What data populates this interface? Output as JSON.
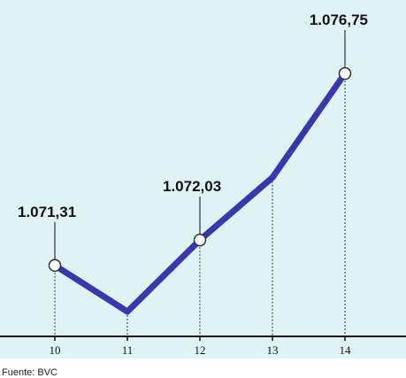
{
  "chart_data": {
    "type": "line",
    "x": [
      "10",
      "11",
      "12",
      "13",
      "14"
    ],
    "series": [
      {
        "values": [
          1071.31,
          1070.0,
          1072.03,
          1073.8,
          1076.75
        ]
      }
    ],
    "callouts": [
      {
        "index": 0,
        "label": "1.071,31"
      },
      {
        "index": 2,
        "label": "1.072,03"
      },
      {
        "index": 4,
        "label": "1.076,75"
      }
    ],
    "source": "Fuente: BVC",
    "colors": {
      "background": "#dff2f6",
      "line": "#3a36b0",
      "marker_fill": "#ffffff",
      "marker_stroke": "#333333"
    },
    "grid": false
  }
}
